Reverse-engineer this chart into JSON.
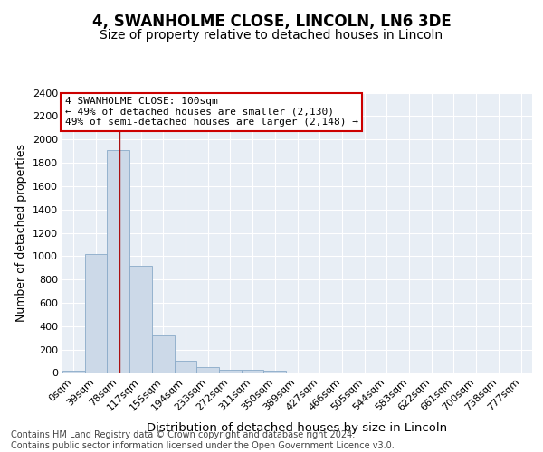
{
  "title1": "4, SWANHOLME CLOSE, LINCOLN, LN6 3DE",
  "title2": "Size of property relative to detached houses in Lincoln",
  "xlabel": "Distribution of detached houses by size in Lincoln",
  "ylabel": "Number of detached properties",
  "bar_labels": [
    "0sqm",
    "39sqm",
    "78sqm",
    "117sqm",
    "155sqm",
    "194sqm",
    "233sqm",
    "272sqm",
    "311sqm",
    "350sqm",
    "389sqm",
    "427sqm",
    "466sqm",
    "505sqm",
    "544sqm",
    "583sqm",
    "622sqm",
    "661sqm",
    "700sqm",
    "738sqm",
    "777sqm"
  ],
  "bar_values": [
    20,
    1020,
    1910,
    920,
    320,
    105,
    50,
    30,
    25,
    20,
    0,
    0,
    0,
    0,
    0,
    0,
    0,
    0,
    0,
    0,
    0
  ],
  "bar_color": "#ccd9e8",
  "bar_edgecolor": "#8aaac8",
  "ylim": [
    0,
    2400
  ],
  "yticks": [
    0,
    200,
    400,
    600,
    800,
    1000,
    1200,
    1400,
    1600,
    1800,
    2000,
    2200,
    2400
  ],
  "red_line_x": 2.564,
  "annotation_text": "4 SWANHOLME CLOSE: 100sqm\n← 49% of detached houses are smaller (2,130)\n49% of semi-detached houses are larger (2,148) →",
  "annotation_box_color": "#ffffff",
  "annotation_border_color": "#cc0000",
  "footer_text": "Contains HM Land Registry data © Crown copyright and database right 2024.\nContains public sector information licensed under the Open Government Licence v3.0.",
  "background_color": "#e8eef5",
  "grid_color": "#ffffff",
  "title1_fontsize": 12,
  "title2_fontsize": 10,
  "xlabel_fontsize": 9.5,
  "ylabel_fontsize": 9,
  "tick_fontsize": 8,
  "footer_fontsize": 7,
  "annot_fontsize": 8
}
